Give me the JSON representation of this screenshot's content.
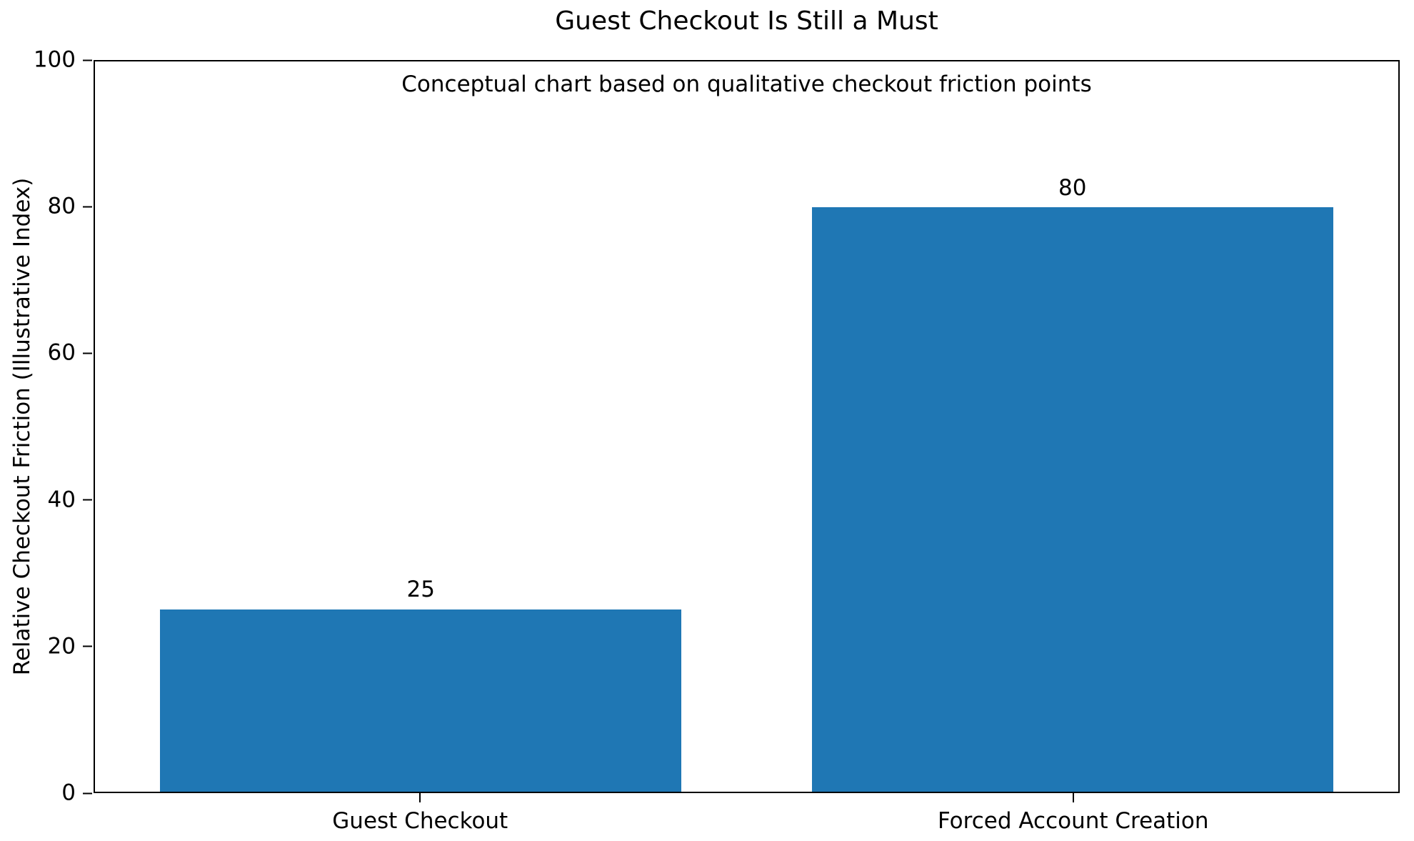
{
  "chart_data": {
    "type": "bar",
    "title": "Guest Checkout Is Still a Must",
    "annotation": "Conceptual chart based on qualitative checkout friction points",
    "categories": [
      "Guest Checkout",
      "Forced Account Creation"
    ],
    "values": [
      25,
      80
    ],
    "xlabel": "",
    "ylabel": "Relative Checkout Friction (Illustrative Index)",
    "ylim": [
      0,
      100
    ],
    "yticks": [
      0,
      20,
      40,
      60,
      80,
      100
    ],
    "bar_color": "#1f77b4",
    "grid": false,
    "legend": false
  }
}
